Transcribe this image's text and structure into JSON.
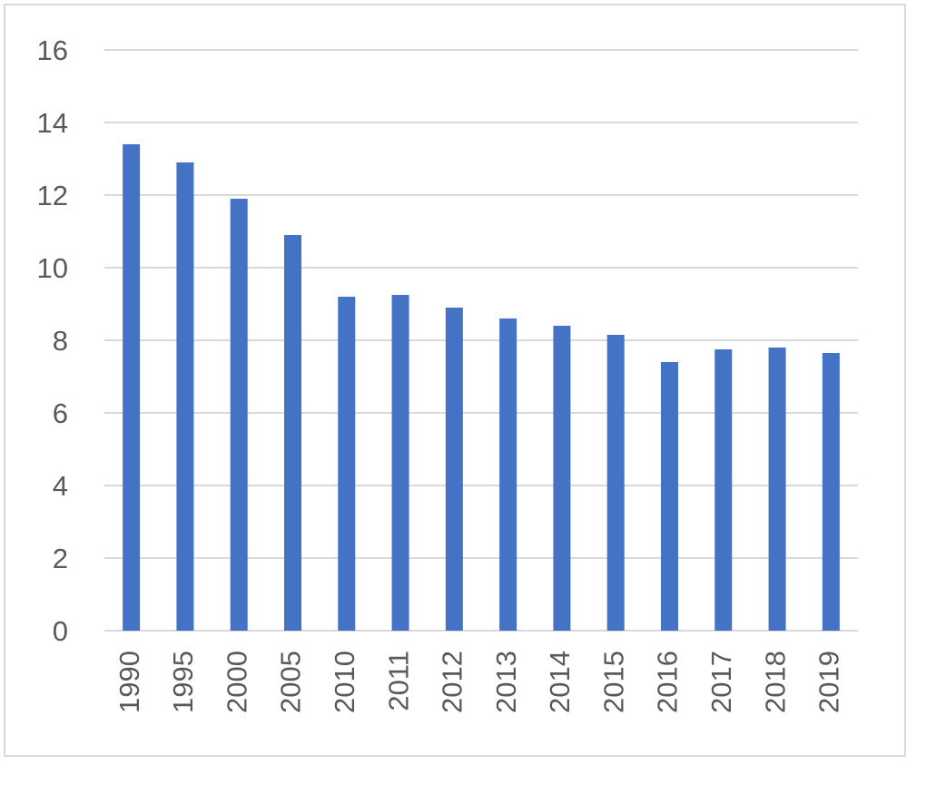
{
  "chart_data": {
    "type": "bar",
    "categories": [
      "1990",
      "1995",
      "2000",
      "2005",
      "2010",
      "2011",
      "2012",
      "2013",
      "2014",
      "2015",
      "2016",
      "2017",
      "2018",
      "2019"
    ],
    "values": [
      13.4,
      12.9,
      11.9,
      10.9,
      9.2,
      9.25,
      8.9,
      8.6,
      8.4,
      8.15,
      7.4,
      7.75,
      7.8,
      7.65
    ],
    "color": "#4472c4",
    "ylim": [
      0,
      16
    ],
    "yticks": [
      0,
      2,
      4,
      6,
      8,
      10,
      12,
      14,
      16
    ],
    "grid": true
  }
}
